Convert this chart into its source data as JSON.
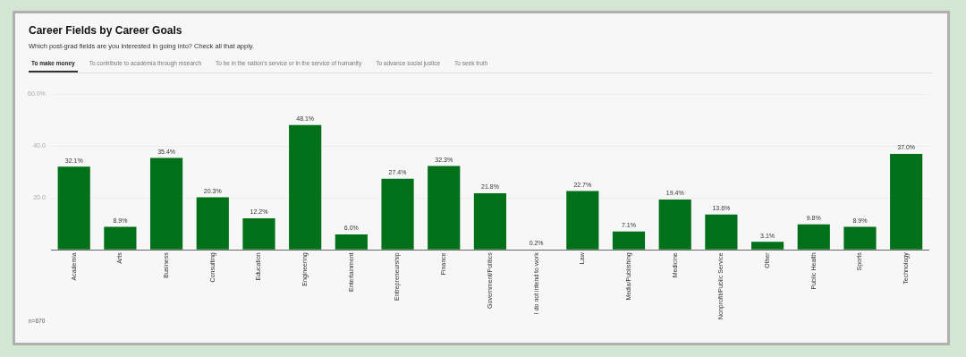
{
  "chart_data": {
    "type": "bar",
    "title": "Career Fields by Career Goals",
    "subtitle": "Which post-grad fields are you interested in going into? Check all that apply.",
    "categories": [
      "Academia",
      "Arts",
      "Business",
      "Consulting",
      "Education",
      "Engineering",
      "Entertainment",
      "Entrepreneurship",
      "Finance",
      "Government/Politics",
      "I do not intend to work",
      "Law",
      "Media/Publishing",
      "Medicine",
      "Nonprofit/Public Service",
      "Other",
      "Public Health",
      "Sports",
      "Technology"
    ],
    "values": [
      32.1,
      8.9,
      35.4,
      20.3,
      12.2,
      48.1,
      6.0,
      27.4,
      32.3,
      21.8,
      0.2,
      22.7,
      7.1,
      19.4,
      13.6,
      3.1,
      9.8,
      8.9,
      37.0
    ],
    "value_labels": [
      "32.1%",
      "8.9%",
      "35.4%",
      "20.3%",
      "12.2%",
      "48.1%",
      "6.0%",
      "27.4%",
      "32.3%",
      "21.8%",
      "0.2%",
      "22.7%",
      "7.1%",
      "19.4%",
      "13.6%",
      "3.1%",
      "9.8%",
      "8.9%",
      "37.0%"
    ],
    "color": "#007019",
    "ylim": [
      0,
      60
    ],
    "yticks": [
      {
        "value": 0,
        "label": null
      },
      {
        "value": 20,
        "label": "20.0"
      },
      {
        "value": 40,
        "label": "40.0"
      },
      {
        "value": 60,
        "label": "60.0%"
      }
    ],
    "grid": "y",
    "annotations": [
      "To make money",
      "To contribute to academia through research",
      "To be in the nation's service or in the service of humanity",
      "To advance social justice",
      "To seek truth",
      "n=670"
    ]
  }
}
